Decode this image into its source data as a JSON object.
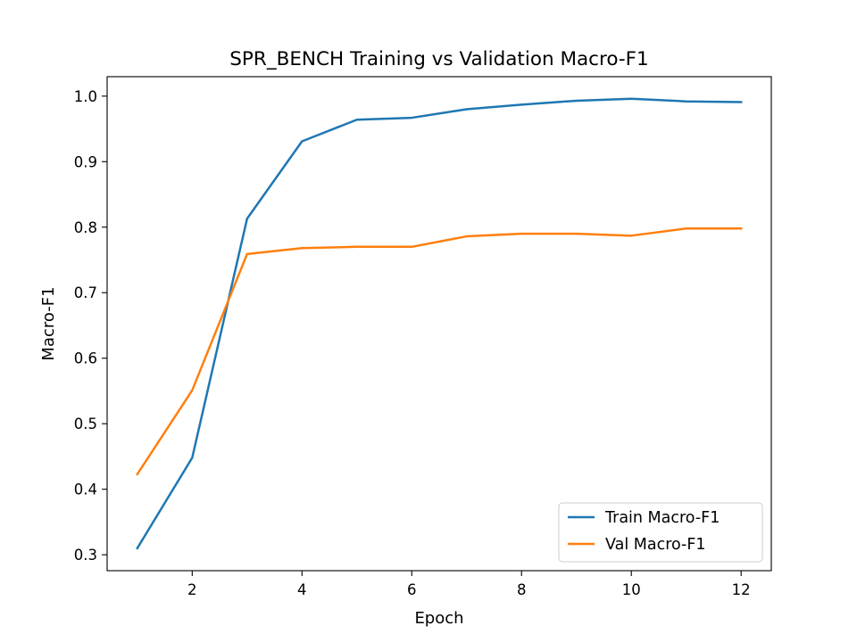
{
  "chart_data": {
    "type": "line",
    "title": "SPR_BENCH Training vs Validation Macro-F1",
    "xlabel": "Epoch",
    "ylabel": "Macro-F1",
    "x": [
      1,
      2,
      3,
      4,
      5,
      6,
      7,
      8,
      9,
      10,
      11,
      12
    ],
    "xlim": [
      0.45,
      12.55
    ],
    "ylim": [
      0.2757,
      1.0297
    ],
    "xticks": [
      2,
      4,
      6,
      8,
      10,
      12
    ],
    "xtick_labels": [
      "2",
      "4",
      "6",
      "8",
      "10",
      "12"
    ],
    "yticks": [
      0.3,
      0.4,
      0.5,
      0.6,
      0.7,
      0.8,
      0.9,
      1.0
    ],
    "ytick_labels": [
      "0.3",
      "0.4",
      "0.5",
      "0.6",
      "0.7",
      "0.8",
      "0.9",
      "1.0"
    ],
    "grid": false,
    "legend_position": "lower right",
    "series": [
      {
        "name": "Train Macro-F1",
        "color": "#1f77b4",
        "values": [
          0.31,
          0.448,
          0.813,
          0.931,
          0.964,
          0.967,
          0.98,
          0.987,
          0.993,
          0.996,
          0.992,
          0.991
        ]
      },
      {
        "name": "Val Macro-F1",
        "color": "#ff7f0e",
        "values": [
          0.423,
          0.551,
          0.759,
          0.768,
          0.77,
          0.77,
          0.786,
          0.79,
          0.79,
          0.787,
          0.798,
          0.798
        ]
      }
    ]
  }
}
